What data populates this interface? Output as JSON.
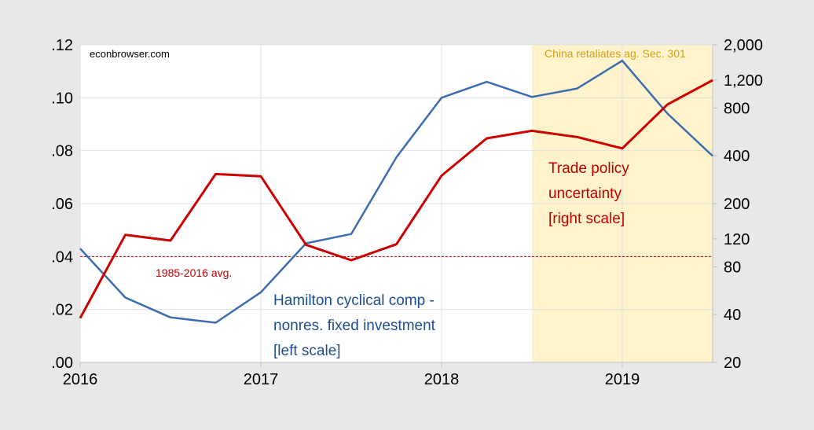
{
  "chart_data": {
    "type": "line",
    "watermark": "econbrowser.com",
    "shaded_region": {
      "start": 2018.5,
      "end": 2019.5,
      "color": "#fff3cc",
      "label": "China retaliates ag. Sec. 301",
      "label_color": "#d4a017"
    },
    "reference_line": {
      "value": 0.04,
      "axis": "left",
      "label": "1985-2016 avg.",
      "color": "#c00000"
    },
    "x_ticks": [
      {
        "value": 2016,
        "label": "2016"
      },
      {
        "value": 2017,
        "label": "2017"
      },
      {
        "value": 2018,
        "label": "2018"
      },
      {
        "value": 2019,
        "label": "2019"
      }
    ],
    "xlim": [
      2016,
      2019.5
    ],
    "left_axis": {
      "ylim": [
        0,
        0.12
      ],
      "ticks": [
        {
          "value": 0.0,
          "label": ".00"
        },
        {
          "value": 0.02,
          "label": ".02"
        },
        {
          "value": 0.04,
          "label": ".04"
        },
        {
          "value": 0.06,
          "label": ".06"
        },
        {
          "value": 0.08,
          "label": ".08"
        },
        {
          "value": 0.1,
          "label": ".10"
        },
        {
          "value": 0.12,
          "label": ".12"
        }
      ]
    },
    "right_axis": {
      "scale": "log",
      "ylim": [
        20,
        2000
      ],
      "ticks": [
        {
          "value": 20,
          "label": "20"
        },
        {
          "value": 40,
          "label": "40"
        },
        {
          "value": 80,
          "label": "80"
        },
        {
          "value": 120,
          "label": "120"
        },
        {
          "value": 200,
          "label": "200"
        },
        {
          "value": 400,
          "label": "400"
        },
        {
          "value": 800,
          "label": "800"
        },
        {
          "value": 1200,
          "label": "1,200"
        },
        {
          "value": 2000,
          "label": "2,000"
        }
      ]
    },
    "series": [
      {
        "name": "Hamilton cyclical comp - nonres. fixed investment [left scale]",
        "label_lines": [
          "Hamilton cyclical comp -",
          "nonres. fixed investment",
          "[left scale]"
        ],
        "axis": "left",
        "color": "#3c6cb0",
        "x": [
          2016.0,
          2016.25,
          2016.5,
          2016.75,
          2017.0,
          2017.25,
          2017.5,
          2017.75,
          2018.0,
          2018.25,
          2018.5,
          2018.75,
          2019.0,
          2019.25,
          2019.5
        ],
        "values": [
          0.043,
          0.0245,
          0.017,
          0.015,
          0.0265,
          0.045,
          0.0485,
          0.0775,
          0.1,
          0.106,
          0.1003,
          0.1035,
          0.114,
          0.094,
          0.078
        ]
      },
      {
        "name": "Trade policy uncertainty [right scale]",
        "label_lines": [
          "Trade policy",
          "uncertainty",
          "[right scale]"
        ],
        "axis": "right",
        "color": "#cc0000",
        "x": [
          2016.0,
          2016.25,
          2016.5,
          2016.75,
          2017.0,
          2017.25,
          2017.5,
          2017.75,
          2018.0,
          2018.25,
          2018.5,
          2018.75,
          2019.0,
          2019.25,
          2019.5
        ],
        "values": [
          38,
          127,
          117,
          307,
          297,
          110,
          88,
          111,
          300,
          515,
          575,
          525,
          445,
          842,
          1198
        ]
      }
    ]
  }
}
